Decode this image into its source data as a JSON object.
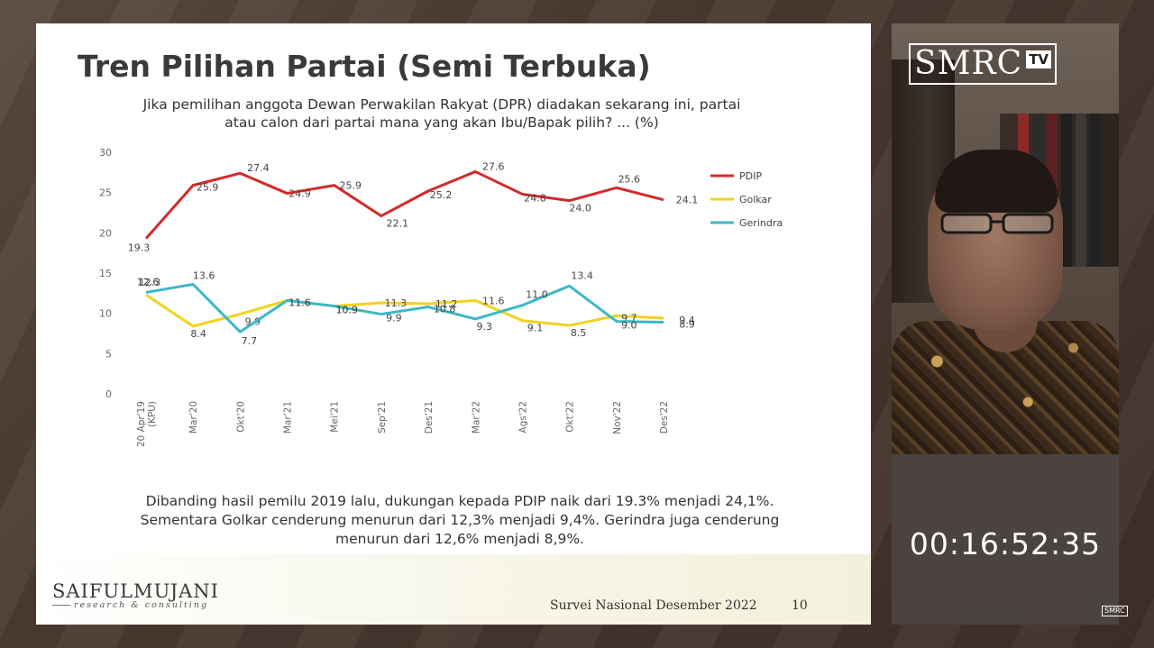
{
  "slide": {
    "title": "Tren Pilihan Partai (Semi Terbuka)",
    "question_line1": "Jika pemilihan anggota Dewan Perwakilan Rakyat (DPR) diadakan sekarang ini, partai",
    "question_line2": "atau calon dari partai mana yang akan Ibu/Bapak pilih?  ... (%)",
    "summary_line1": "Dibanding hasil pemilu 2019 lalu, dukungan kepada PDIP naik dari 19.3% menjadi 24,1%.",
    "summary_line2": "Sementara Golkar cenderung menurun dari 12,3% menjadi 9,4%. Gerindra juga cenderung",
    "summary_line3": "menurun dari 12,6% menjadi 8,9%.",
    "logo_main": "SAIFULMUJANI",
    "logo_sub": "research & consulting",
    "footer_text": "Survei Nasional Desember 2022",
    "page_number": "10"
  },
  "video": {
    "brand_text": "SMRC",
    "brand_tv": "TV",
    "timer": "00:16:52:35",
    "mini_brand": "SMRC"
  },
  "chart_data": {
    "type": "line",
    "categories": [
      "20 Apr'19 (KPU)",
      "Mar'20",
      "Okt'20",
      "Mar'21",
      "Mei'21",
      "Sep'21",
      "Des'21",
      "Mar'22",
      "Ags'22",
      "Okt'22",
      "Nov'22",
      "Des'22"
    ],
    "category_lines": [
      [
        "20 Apr'19",
        "(KPU)"
      ],
      [
        "Mar'20"
      ],
      [
        "Okt'20"
      ],
      [
        "Mar'21"
      ],
      [
        "Mei'21"
      ],
      [
        "Sep'21"
      ],
      [
        "Des'21"
      ],
      [
        "Mar'22"
      ],
      [
        "Ags'22"
      ],
      [
        "Okt'22"
      ],
      [
        "Nov'22"
      ],
      [
        "Des'22"
      ]
    ],
    "ylim": [
      0,
      30
    ],
    "yticks": [
      0,
      5,
      10,
      15,
      20,
      25,
      30
    ],
    "grid": false,
    "legend_position": "right",
    "series": [
      {
        "name": "PDIP",
        "color": "#d42a2a",
        "values": [
          19.3,
          25.9,
          27.4,
          24.9,
          25.9,
          22.1,
          25.2,
          27.6,
          24.8,
          24.0,
          25.6,
          24.1
        ],
        "labels": [
          "19.3",
          "25.9",
          "27.4",
          "24.9",
          "25.9",
          "22.1",
          "25.2",
          "27.6",
          "24.8",
          "24.0",
          "25.6",
          "24.1"
        ]
      },
      {
        "name": "Golkar",
        "color": "#f2d21e",
        "values": [
          12.3,
          8.4,
          9.9,
          11.6,
          10.9,
          11.3,
          11.2,
          11.6,
          9.1,
          8.5,
          9.7,
          9.4
        ],
        "labels": [
          "12.3",
          "8.4",
          "9.9",
          "11.6",
          "10.9",
          "11.3",
          "11.2",
          "11.6",
          "9.1",
          "8.5",
          "9.7",
          "9.4"
        ]
      },
      {
        "name": "Gerindra",
        "color": "#3bb8c8",
        "values": [
          12.6,
          13.6,
          7.7,
          11.6,
          10.9,
          9.9,
          10.8,
          9.3,
          11.0,
          13.4,
          9.0,
          8.9
        ],
        "labels": [
          "12.6",
          "13.6",
          "7.7",
          "11.6",
          "10.9",
          "9.9",
          "10.8",
          "9.3",
          "11.0",
          "13.4",
          "9.0",
          "8.9"
        ]
      }
    ]
  }
}
